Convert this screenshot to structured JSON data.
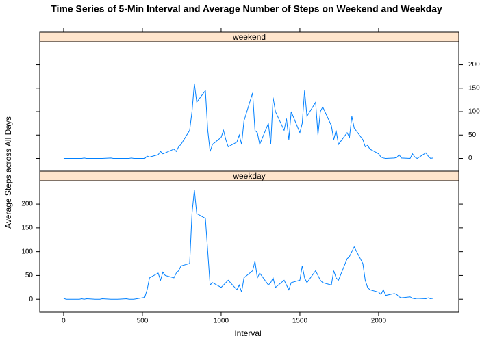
{
  "chart_data": {
    "type": "line",
    "title": "Time Series of 5-Min Interval and Average Number of Steps on Weekend and Weekday",
    "xlabel": "Interval",
    "ylabel": "Average Steps across All Days",
    "color": "#0080ff",
    "strip_color": "#ffe5cc",
    "x": [
      0,
      15,
      30,
      45,
      100,
      115,
      130,
      145,
      200,
      215,
      230,
      245,
      300,
      315,
      330,
      345,
      400,
      415,
      430,
      445,
      500,
      515,
      530,
      545,
      600,
      615,
      630,
      645,
      700,
      715,
      730,
      745,
      800,
      815,
      830,
      845,
      900,
      915,
      930,
      945,
      1000,
      1015,
      1030,
      1045,
      1100,
      1115,
      1130,
      1145,
      1200,
      1215,
      1230,
      1245,
      1300,
      1315,
      1330,
      1345,
      1400,
      1415,
      1430,
      1445,
      1500,
      1515,
      1530,
      1545,
      1600,
      1615,
      1630,
      1645,
      1700,
      1715,
      1730,
      1745,
      1800,
      1815,
      1830,
      1845,
      1900,
      1915,
      1930,
      1945,
      2000,
      2015,
      2030,
      2045,
      2100,
      2115,
      2130,
      2145,
      2200,
      2215,
      2230,
      2245,
      2300,
      2315,
      2330,
      2345
    ],
    "xlim": [
      -152,
      2509
    ],
    "xticks": [
      0,
      500,
      1000,
      1500,
      2000
    ],
    "ylim": [
      -27,
      249
    ],
    "yticks": [
      0,
      50,
      100,
      150,
      200
    ],
    "series": [
      {
        "name": "weekend",
        "values": [
          0,
          0,
          0,
          0,
          0,
          0,
          1,
          0,
          0,
          0,
          0,
          0,
          1,
          0,
          0,
          0,
          0,
          0,
          1,
          0,
          0,
          0,
          5,
          3,
          8,
          15,
          10,
          12,
          20,
          15,
          25,
          30,
          60,
          100,
          160,
          120,
          145,
          60,
          15,
          30,
          45,
          60,
          40,
          25,
          35,
          50,
          30,
          80,
          140,
          60,
          55,
          30,
          75,
          30,
          130,
          100,
          60,
          85,
          40,
          100,
          55,
          75,
          145,
          90,
          120,
          50,
          100,
          110,
          70,
          40,
          60,
          30,
          55,
          45,
          90,
          65,
          40,
          25,
          28,
          20,
          10,
          3,
          1,
          0,
          1,
          2,
          8,
          1,
          0,
          10,
          3,
          0,
          12,
          5,
          0,
          1
        ]
      },
      {
        "name": "weekday",
        "values": [
          2,
          0,
          0,
          0,
          0,
          1,
          0,
          1,
          0,
          0,
          0,
          1,
          0,
          0,
          0,
          0,
          1,
          0,
          0,
          0,
          3,
          4,
          20,
          45,
          55,
          40,
          57,
          50,
          45,
          55,
          60,
          70,
          75,
          180,
          230,
          180,
          170,
          100,
          30,
          35,
          25,
          30,
          35,
          40,
          20,
          30,
          15,
          45,
          60,
          80,
          45,
          55,
          30,
          35,
          45,
          25,
          40,
          30,
          20,
          35,
          40,
          70,
          45,
          35,
          60,
          50,
          40,
          35,
          30,
          60,
          45,
          40,
          85,
          90,
          100,
          110,
          75,
          40,
          25,
          20,
          15,
          10,
          20,
          8,
          12,
          10,
          5,
          3,
          5,
          2,
          1,
          2,
          1,
          3,
          1,
          2
        ]
      }
    ]
  }
}
